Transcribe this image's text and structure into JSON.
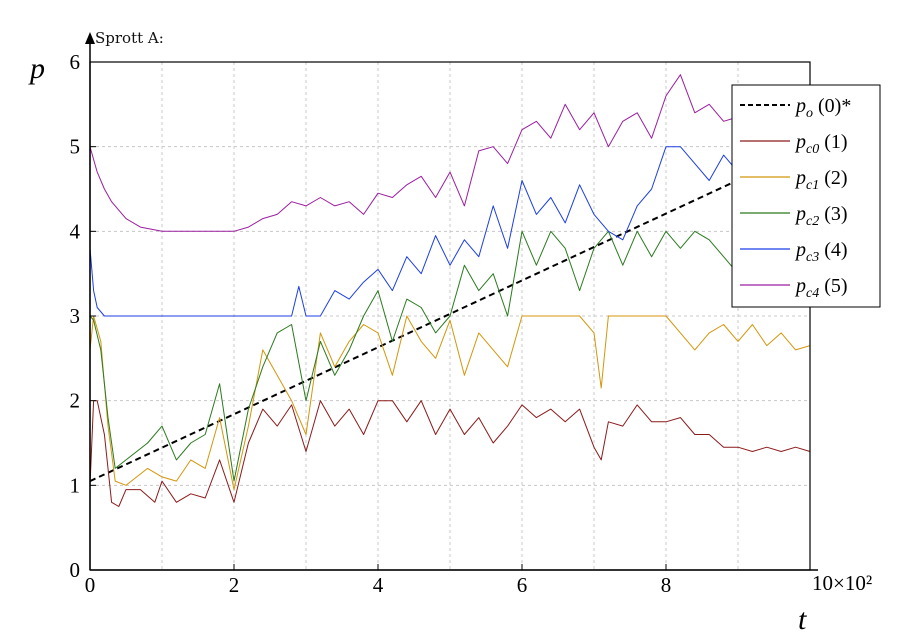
{
  "caption": "Sprott A:",
  "chart_data": {
    "type": "line",
    "title": "",
    "xlabel": "t",
    "ylabel": "p",
    "x_multiplier": "10×10²",
    "xlim": [
      0,
      10
    ],
    "ylim": [
      0,
      6
    ],
    "x_ticks": [
      "0",
      "2",
      "4",
      "6",
      "8"
    ],
    "y_ticks": [
      "0",
      "1",
      "2",
      "3",
      "4",
      "5",
      "6"
    ],
    "grid": true,
    "legend_position": "top-right",
    "series": [
      {
        "name": "p_o (0)*",
        "symbol": "p",
        "sub": "o",
        "tag": " (0)*",
        "color": "#000000",
        "dashed": true,
        "x": [
          0,
          10
        ],
        "y": [
          1.05,
          5.0
        ]
      },
      {
        "name": "p_c0 (1)",
        "symbol": "p",
        "sub": "c0",
        "tag": " (1)",
        "color": "#8b1a1a",
        "dashed": false,
        "x": [
          0,
          0.05,
          0.1,
          0.2,
          0.3,
          0.4,
          0.5,
          0.7,
          0.9,
          1.0,
          1.2,
          1.4,
          1.6,
          1.8,
          2.0,
          2.2,
          2.4,
          2.6,
          2.8,
          3.0,
          3.2,
          3.4,
          3.6,
          3.8,
          4.0,
          4.2,
          4.4,
          4.6,
          4.8,
          5.0,
          5.2,
          5.4,
          5.6,
          5.8,
          6.0,
          6.2,
          6.4,
          6.6,
          6.8,
          7.0,
          7.1,
          7.2,
          7.4,
          7.6,
          7.8,
          8.0,
          8.2,
          8.4,
          8.6,
          8.8,
          9.0,
          9.2,
          9.4,
          9.6,
          9.8,
          10.0
        ],
        "y": [
          1.0,
          2.0,
          2.0,
          1.6,
          0.8,
          0.75,
          0.95,
          0.95,
          0.8,
          1.05,
          0.8,
          0.9,
          0.85,
          1.3,
          0.8,
          1.5,
          1.9,
          1.7,
          1.95,
          1.4,
          2.0,
          1.7,
          1.9,
          1.6,
          2.0,
          2.0,
          1.75,
          2.0,
          1.6,
          1.9,
          1.6,
          1.8,
          1.5,
          1.7,
          1.95,
          1.8,
          1.9,
          1.75,
          1.9,
          1.45,
          1.3,
          1.75,
          1.7,
          1.95,
          1.75,
          1.75,
          1.8,
          1.6,
          1.6,
          1.45,
          1.45,
          1.4,
          1.45,
          1.4,
          1.45,
          1.4
        ]
      },
      {
        "name": "p_c1 (2)",
        "symbol": "p",
        "sub": "c1",
        "tag": " (2)",
        "color": "#d4960a",
        "dashed": false,
        "x": [
          0,
          0.05,
          0.15,
          0.25,
          0.35,
          0.5,
          0.8,
          1.0,
          1.2,
          1.4,
          1.6,
          1.8,
          2.0,
          2.2,
          2.4,
          2.6,
          2.8,
          3.0,
          3.2,
          3.4,
          3.6,
          3.8,
          4.0,
          4.2,
          4.4,
          4.6,
          4.8,
          5.0,
          5.2,
          5.4,
          5.6,
          5.8,
          6.0,
          6.2,
          6.4,
          6.6,
          6.8,
          7.0,
          7.1,
          7.2,
          7.4,
          7.6,
          7.8,
          8.0,
          8.2,
          8.4,
          8.6,
          8.8,
          9.0,
          9.2,
          9.4,
          9.6,
          9.8,
          10.0
        ],
        "y": [
          2.6,
          3.0,
          2.7,
          1.7,
          1.05,
          1.0,
          1.2,
          1.1,
          1.05,
          1.3,
          1.2,
          1.8,
          0.95,
          1.7,
          2.6,
          2.3,
          2.0,
          1.6,
          2.8,
          2.4,
          2.7,
          2.9,
          2.8,
          2.3,
          3.0,
          2.7,
          2.5,
          2.95,
          2.3,
          2.8,
          2.6,
          2.4,
          3.0,
          3.0,
          3.0,
          3.0,
          3.0,
          2.8,
          2.15,
          3.0,
          3.0,
          3.0,
          3.0,
          3.0,
          2.8,
          2.6,
          2.8,
          2.9,
          2.7,
          2.9,
          2.65,
          2.8,
          2.6,
          2.65
        ]
      },
      {
        "name": "p_c2 (3)",
        "symbol": "p",
        "sub": "c2",
        "tag": " (3)",
        "color": "#2a7a1e",
        "dashed": false,
        "x": [
          0,
          0.05,
          0.15,
          0.25,
          0.35,
          0.5,
          0.8,
          1.0,
          1.2,
          1.4,
          1.6,
          1.8,
          2.0,
          2.2,
          2.4,
          2.6,
          2.8,
          3.0,
          3.2,
          3.4,
          3.6,
          3.8,
          4.0,
          4.2,
          4.4,
          4.6,
          4.8,
          5.0,
          5.2,
          5.4,
          5.6,
          5.8,
          6.0,
          6.2,
          6.4,
          6.6,
          6.8,
          7.0,
          7.2,
          7.4,
          7.6,
          7.8,
          8.0,
          8.2,
          8.4,
          8.6,
          8.8,
          9.0,
          9.2,
          9.4,
          9.6,
          9.8,
          10.0
        ],
        "y": [
          3.0,
          2.95,
          2.6,
          1.8,
          1.2,
          1.3,
          1.5,
          1.7,
          1.3,
          1.5,
          1.6,
          2.2,
          1.05,
          1.9,
          2.4,
          2.8,
          2.9,
          2.0,
          2.7,
          2.3,
          2.6,
          3.0,
          3.3,
          2.7,
          3.2,
          3.1,
          2.8,
          3.0,
          3.6,
          3.3,
          3.5,
          3.0,
          4.0,
          3.6,
          4.0,
          3.8,
          3.3,
          3.8,
          4.0,
          3.6,
          4.0,
          3.7,
          4.0,
          3.8,
          4.0,
          3.9,
          3.7,
          3.5,
          3.8,
          3.5,
          3.7,
          3.6,
          3.55
        ]
      },
      {
        "name": "p_c3 (4)",
        "symbol": "p",
        "sub": "c3",
        "tag": " (4)",
        "color": "#1c3ee6",
        "dashed": false,
        "x": [
          0,
          0.05,
          0.1,
          0.2,
          0.4,
          1.0,
          2.0,
          2.8,
          2.9,
          3.0,
          3.2,
          3.4,
          3.6,
          3.8,
          4.0,
          4.2,
          4.4,
          4.6,
          4.8,
          5.0,
          5.2,
          5.4,
          5.6,
          5.8,
          6.0,
          6.2,
          6.4,
          6.6,
          6.8,
          7.0,
          7.2,
          7.4,
          7.6,
          7.8,
          8.0,
          8.2,
          8.4,
          8.6,
          8.8,
          9.0,
          9.2,
          9.4,
          9.6,
          9.8,
          10.0
        ],
        "y": [
          3.8,
          3.3,
          3.1,
          3.0,
          3.0,
          3.0,
          3.0,
          3.0,
          3.35,
          3.0,
          3.0,
          3.3,
          3.2,
          3.4,
          3.55,
          3.3,
          3.7,
          3.5,
          3.95,
          3.6,
          3.9,
          3.7,
          4.3,
          3.8,
          4.6,
          4.2,
          4.4,
          4.1,
          4.55,
          4.2,
          4.0,
          3.9,
          4.3,
          4.5,
          5.0,
          5.0,
          4.8,
          4.6,
          4.9,
          4.7,
          4.8,
          4.6,
          4.8,
          4.7,
          4.8
        ]
      },
      {
        "name": "p_c4 (5)",
        "symbol": "p",
        "sub": "c4",
        "tag": " (5)",
        "color": "#9b1ea0",
        "dashed": false,
        "x": [
          0,
          0.1,
          0.2,
          0.3,
          0.4,
          0.5,
          0.7,
          1.0,
          1.5,
          2.0,
          2.2,
          2.4,
          2.6,
          2.8,
          3.0,
          3.2,
          3.4,
          3.6,
          3.8,
          4.0,
          4.2,
          4.4,
          4.6,
          4.8,
          5.0,
          5.2,
          5.4,
          5.6,
          5.8,
          6.0,
          6.2,
          6.4,
          6.6,
          6.8,
          7.0,
          7.2,
          7.4,
          7.6,
          7.8,
          8.0,
          8.2,
          8.4,
          8.6,
          8.8,
          9.0,
          9.2,
          9.4,
          9.6,
          9.8,
          10.0
        ],
        "y": [
          5.0,
          4.7,
          4.5,
          4.35,
          4.25,
          4.15,
          4.05,
          4.0,
          4.0,
          4.0,
          4.05,
          4.15,
          4.2,
          4.35,
          4.3,
          4.4,
          4.3,
          4.35,
          4.2,
          4.45,
          4.4,
          4.55,
          4.65,
          4.4,
          4.7,
          4.3,
          4.95,
          5.0,
          4.8,
          5.2,
          5.3,
          5.1,
          5.5,
          5.2,
          5.4,
          5.0,
          5.3,
          5.4,
          5.1,
          5.6,
          5.85,
          5.4,
          5.5,
          5.3,
          5.35,
          5.2,
          5.3,
          5.1,
          5.25,
          5.15
        ]
      }
    ]
  }
}
